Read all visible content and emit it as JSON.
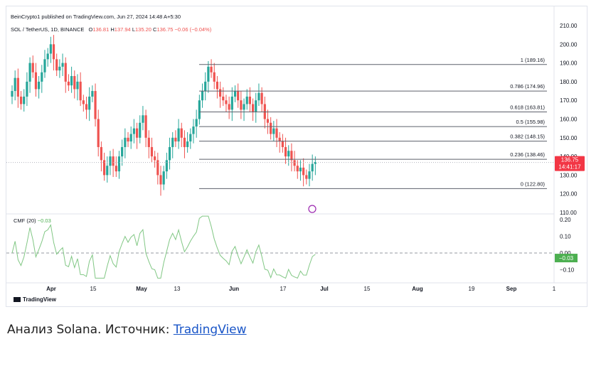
{
  "header": {
    "publisher": "BeinCrypto1 published on TradingView.com, Jun 27, 2024 14:48 A+5:30",
    "symbol": "SOL / TetherUS, 1D, BINANCE",
    "ohlc": {
      "O": "136.81",
      "H": "137.94",
      "L": "135.20",
      "C": "136.75",
      "change": "−0.06 (−0.04%)"
    }
  },
  "cmf_label": "CMF (20)",
  "cmf_value": "−0.03",
  "price_badge": {
    "price": "136.75",
    "countdown": "14:41:17"
  },
  "cmf_badge": "−0.03",
  "branding": "TradingView",
  "caption": {
    "text": "Анализ Solana. Источник: ",
    "link": "TradingView"
  },
  "colors": {
    "up": "#26a69a",
    "down": "#ef5350",
    "cmf": "#81c784",
    "fib": "#5d606b",
    "badge": "#f23645",
    "cmf_badge": "#4caf50"
  },
  "chart_data": {
    "type": "candlestick",
    "price_axis": {
      "min": 110,
      "max": 210,
      "ticks": [
        "210.00",
        "200.00",
        "190.00",
        "180.00",
        "170.00",
        "160.00",
        "150.00",
        "140.00",
        "130.00",
        "120.00",
        "110.00"
      ]
    },
    "cmf_axis": {
      "ticks": [
        "0.20",
        "0.10",
        "0.00",
        "−0.10"
      ]
    },
    "x_tick_labels": [
      "Apr",
      "15",
      "May",
      "13",
      "Jun",
      "17",
      "Jul",
      "15",
      "Aug",
      "19",
      "Sep",
      "1"
    ],
    "fib_levels": [
      {
        "label": "1 (189.16)",
        "value": 189.16
      },
      {
        "label": "0.786 (174.96)",
        "value": 174.96
      },
      {
        "label": "0.618 (163.81)",
        "value": 163.81
      },
      {
        "label": "0.5 (155.98)",
        "value": 155.98
      },
      {
        "label": "0.382 (148.15)",
        "value": 148.15
      },
      {
        "label": "0.236 (138.46)",
        "value": 138.46
      },
      {
        "label": "0 (122.80)",
        "value": 122.8
      }
    ],
    "closes": [
      175,
      182,
      172,
      168,
      172,
      180,
      190,
      185,
      176,
      180,
      185,
      192,
      195,
      200,
      192,
      186,
      188,
      190,
      180,
      178,
      183,
      176,
      180,
      170,
      168,
      165,
      172,
      175,
      160,
      145,
      138,
      130,
      135,
      140,
      135,
      132,
      140,
      145,
      150,
      148,
      152,
      155,
      150,
      158,
      162,
      150,
      145,
      140,
      138,
      130,
      125,
      132,
      138,
      145,
      150,
      148,
      155,
      150,
      145,
      148,
      152,
      156,
      160,
      170,
      175,
      180,
      188,
      185,
      180,
      176,
      172,
      170,
      168,
      165,
      172,
      175,
      170,
      165,
      168,
      172,
      168,
      164,
      170,
      174,
      168,
      160,
      158,
      152,
      155,
      150,
      148,
      145,
      140,
      143,
      138,
      135,
      132,
      134,
      130,
      128,
      132,
      136,
      137
    ]
  }
}
